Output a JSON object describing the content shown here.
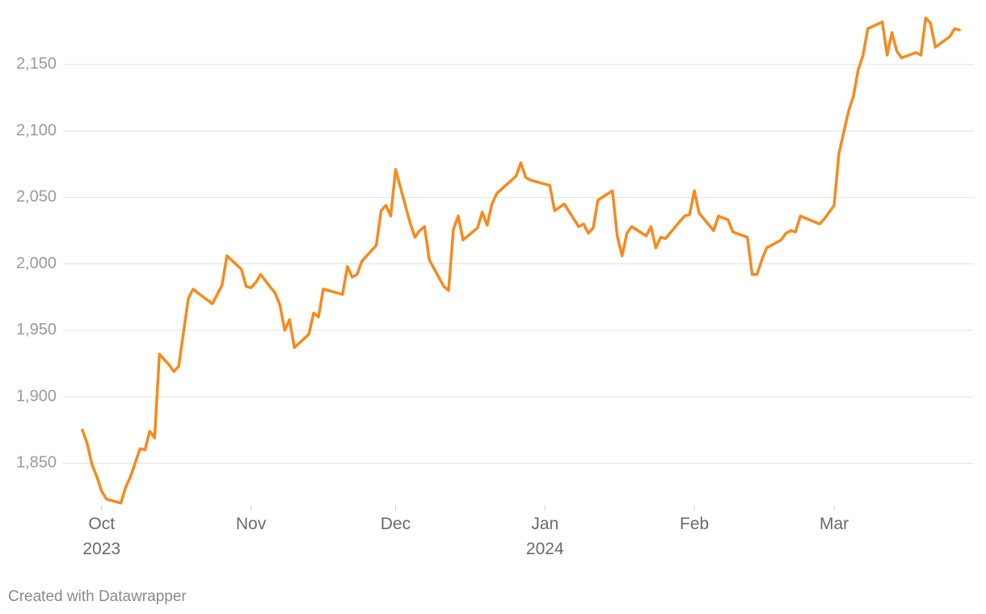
{
  "chart_data": {
    "type": "line",
    "credit": "Created with Datawrapper",
    "x": [
      -4,
      -3,
      -2,
      -1,
      0,
      1,
      3,
      4,
      5,
      6,
      8,
      9,
      10,
      11,
      12,
      14,
      15,
      16,
      18,
      19,
      20,
      23,
      24,
      25,
      26,
      29,
      30,
      31,
      32,
      33,
      36,
      37,
      38,
      39,
      40,
      43,
      44,
      45,
      46,
      50,
      51,
      52,
      53,
      54,
      57,
      58,
      59,
      60,
      61,
      64,
      65,
      66,
      67,
      68,
      71,
      72,
      73,
      74,
      75,
      78,
      79,
      80,
      81,
      82,
      86,
      87,
      88,
      89,
      93,
      94,
      96,
      99,
      100,
      101,
      102,
      103,
      106,
      107,
      108,
      109,
      110,
      113,
      114,
      115,
      116,
      117,
      120,
      121,
      122,
      123,
      124,
      127,
      128,
      130,
      131,
      134,
      135,
      136,
      137,
      138,
      141,
      142,
      143,
      144,
      145,
      149,
      150,
      151,
      152,
      153,
      155,
      156,
      157,
      158,
      159,
      162,
      163,
      164,
      165,
      166,
      169,
      170,
      171,
      172,
      173,
      176,
      177,
      178
    ],
    "series": [
      {
        "color": "#f68a1e",
        "values": [
          1875,
          1865,
          1849,
          1840,
          1829,
          1823,
          1821,
          1820,
          1832,
          1840,
          1861,
          1860,
          1874,
          1869,
          1932,
          1924,
          1919,
          1923,
          1974,
          1981,
          1978,
          1970,
          1977,
          1984,
          2006,
          1996,
          1983,
          1982,
          1986,
          1992,
          1978,
          1969,
          1950,
          1958,
          1937,
          1947,
          1963,
          1960,
          1981,
          1977,
          1998,
          1990,
          1992,
          2002,
          2014,
          2040,
          2044,
          2036,
          2071,
          2031,
          2020,
          2025,
          2028,
          2003,
          1983,
          1980,
          2026,
          2036,
          2018,
          2027,
          2039,
          2029,
          2045,
          2053,
          2066,
          2076,
          2065,
          2063,
          2059,
          2040,
          2045,
          2028,
          2030,
          2023,
          2027,
          2048,
          2055,
          2021,
          2006,
          2023,
          2028,
          2021,
          2028,
          2012,
          2020,
          2019,
          2032,
          2036,
          2037,
          2055,
          2038,
          2025,
          2036,
          2033,
          2024,
          2020,
          1992,
          1992,
          2003,
          2012,
          2018,
          2023,
          2025,
          2024,
          2036,
          2030,
          2034,
          2039,
          2044,
          2083,
          2115,
          2126,
          2146,
          2157,
          2177,
          2182,
          2157,
          2174,
          2160,
          2155,
          2159,
          2157,
          2185,
          2181,
          2163,
          2171,
          2177,
          2176
        ]
      }
    ],
    "xlim": [
      -8,
      181
    ],
    "xticks": [
      {
        "value": 0,
        "label": "Oct 2023"
      },
      {
        "value": 31,
        "label": "Nov"
      },
      {
        "value": 61,
        "label": "Dec"
      },
      {
        "value": 92,
        "label": "Jan 2024"
      },
      {
        "value": 123,
        "label": "Feb"
      },
      {
        "value": 152,
        "label": "Mar"
      }
    ],
    "ylim": [
      1818,
      2190
    ],
    "yticks": [
      {
        "value": 1850,
        "label": "1,850"
      },
      {
        "value": 1900,
        "label": "1,900"
      },
      {
        "value": 1950,
        "label": "1,950"
      },
      {
        "value": 2000,
        "label": "2,000"
      },
      {
        "value": 2050,
        "label": "2,050"
      },
      {
        "value": 2100,
        "label": "2,100"
      },
      {
        "value": 2150,
        "label": "2,150"
      }
    ],
    "grid": true
  }
}
